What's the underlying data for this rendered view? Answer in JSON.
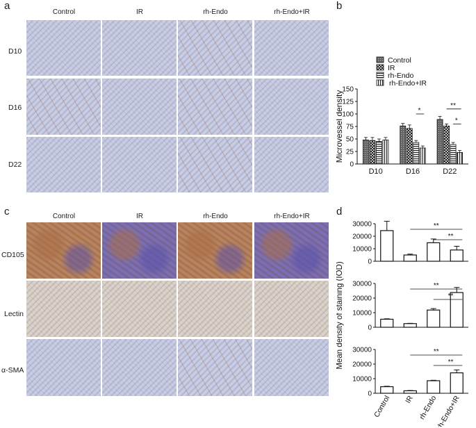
{
  "panels": {
    "a": {
      "letter": "a",
      "columns": [
        "Control",
        "IR",
        "rh-Endo",
        "rh-Endo+IR"
      ],
      "rows": [
        "D10",
        "D16",
        "D22"
      ]
    },
    "b": {
      "letter": "b"
    },
    "c": {
      "letter": "c",
      "columns": [
        "Control",
        "IR",
        "rh-Endo",
        "rh-Endo+IR"
      ],
      "rows": [
        "CD105",
        "Lectin",
        "α-SMA"
      ]
    },
    "d": {
      "letter": "d"
    }
  },
  "colors": {
    "ihc_hematoxylin": "#c9cde2",
    "ihc_light_brown": "#ddd3c5",
    "cd105_brown": "#b8845f",
    "cd105_blue": "#7a6fb6"
  },
  "chart_data": [
    {
      "id": "b",
      "type": "bar",
      "categories": [
        "D10",
        "D16",
        "D22"
      ],
      "ylabel": "Microvessel density",
      "ylim": [
        0,
        150
      ],
      "yticks": [
        "0",
        "25",
        "50",
        "75",
        "100",
        "125",
        "150"
      ],
      "legend": [
        "Control",
        "IR",
        "rh-Endo",
        "rh-Endo+IR"
      ],
      "legend_position": "top",
      "series": [
        {
          "name": "Control",
          "values": [
            48,
            76,
            89
          ],
          "errors": [
            5,
            5,
            6
          ]
        },
        {
          "name": "IR",
          "values": [
            47,
            71,
            76
          ],
          "errors": [
            6,
            7,
            4
          ]
        },
        {
          "name": "rh-Endo",
          "values": [
            45,
            43,
            39
          ],
          "errors": [
            5,
            4,
            4
          ]
        },
        {
          "name": "rh-Endo+IR",
          "values": [
            48,
            32,
            23
          ],
          "errors": [
            5,
            4,
            4
          ]
        }
      ],
      "significance": [
        {
          "group": "D16",
          "from": "rh-Endo",
          "to": "rh-Endo+IR",
          "label": "*"
        },
        {
          "group": "D22",
          "from": "IR",
          "to": "rh-Endo+IR",
          "label": "**"
        },
        {
          "group": "D22",
          "from": "rh-Endo",
          "to": "rh-Endo+IR",
          "label": "*"
        }
      ]
    },
    {
      "id": "d",
      "type": "bar",
      "ylabel": "Mean density of staining (IOD)",
      "categories": [
        "Control",
        "IR",
        "rh-Endo",
        "rh-Endo+IR"
      ],
      "subplots": [
        {
          "name": "CD105",
          "ylim": [
            0,
            30000
          ],
          "yticks": [
            "0",
            "10000",
            "20000",
            "30000"
          ],
          "values": [
            24500,
            5000,
            14800,
            9000
          ],
          "errors": [
            7500,
            700,
            3000,
            3000
          ],
          "significance": [
            {
              "from": "IR",
              "to": "rh-Endo+IR",
              "label": "**"
            },
            {
              "from": "rh-Endo",
              "to": "rh-Endo+IR",
              "label": "**"
            }
          ]
        },
        {
          "name": "Lectin",
          "ylim": [
            0,
            30000
          ],
          "yticks": [
            "0",
            "10000",
            "20000",
            "30000"
          ],
          "values": [
            5500,
            2500,
            11800,
            23800
          ],
          "errors": [
            300,
            200,
            1000,
            3500
          ],
          "significance": [
            {
              "from": "IR",
              "to": "rh-Endo+IR",
              "label": "**"
            },
            {
              "from": "rh-Endo",
              "to": "rh-Endo+IR",
              "label": "**"
            }
          ]
        },
        {
          "name": "α-SMA",
          "ylim": [
            0,
            30000
          ],
          "yticks": [
            "0",
            "10000",
            "20000",
            "30000"
          ],
          "values": [
            4500,
            1700,
            8600,
            14000
          ],
          "errors": [
            300,
            200,
            300,
            2000
          ],
          "significance": [
            {
              "from": "IR",
              "to": "rh-Endo+IR",
              "label": "**"
            },
            {
              "from": "rh-Endo",
              "to": "rh-Endo+IR",
              "label": "**"
            }
          ]
        }
      ]
    }
  ]
}
